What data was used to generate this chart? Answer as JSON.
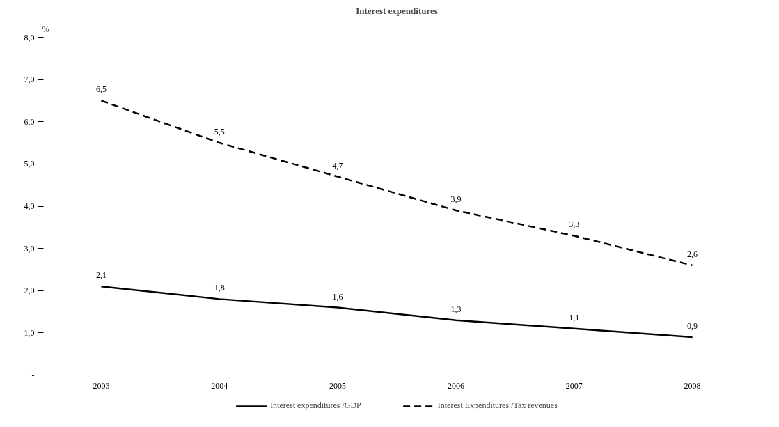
{
  "chart_data": {
    "type": "line",
    "title": "Interest expenditures",
    "ylabel": "%",
    "categories": [
      "2003",
      "2004",
      "2005",
      "2006",
      "2007",
      "2008"
    ],
    "series": [
      {
        "name": "Interest expenditures /GDP",
        "color": "#000000",
        "line_style": "solid",
        "values": [
          2.1,
          1.8,
          1.6,
          1.3,
          1.1,
          0.9
        ],
        "value_labels": [
          "2,1",
          "1,8",
          "1,6",
          "1,3",
          "1,1",
          "0,9"
        ]
      },
      {
        "name": "Interest Expenditures /Tax revenues",
        "color": "#000000",
        "line_style": "dashed",
        "values": [
          6.5,
          5.5,
          4.7,
          3.9,
          3.3,
          2.6
        ],
        "value_labels": [
          "6,5",
          "5,5",
          "4,7",
          "3,9",
          "3,3",
          "2,6"
        ]
      }
    ],
    "ylim": [
      0,
      8
    ],
    "yticks": [
      {
        "value": 0,
        "label": "-"
      },
      {
        "value": 1,
        "label": "1,0"
      },
      {
        "value": 2,
        "label": "2,0"
      },
      {
        "value": 3,
        "label": "3,0"
      },
      {
        "value": 4,
        "label": "4,0"
      },
      {
        "value": 5,
        "label": "5,0"
      },
      {
        "value": 6,
        "label": "6,0"
      },
      {
        "value": 7,
        "label": "7,0"
      },
      {
        "value": 8,
        "label": "8,0"
      }
    ],
    "grid": false,
    "legend": "bottom",
    "marker": "none"
  }
}
